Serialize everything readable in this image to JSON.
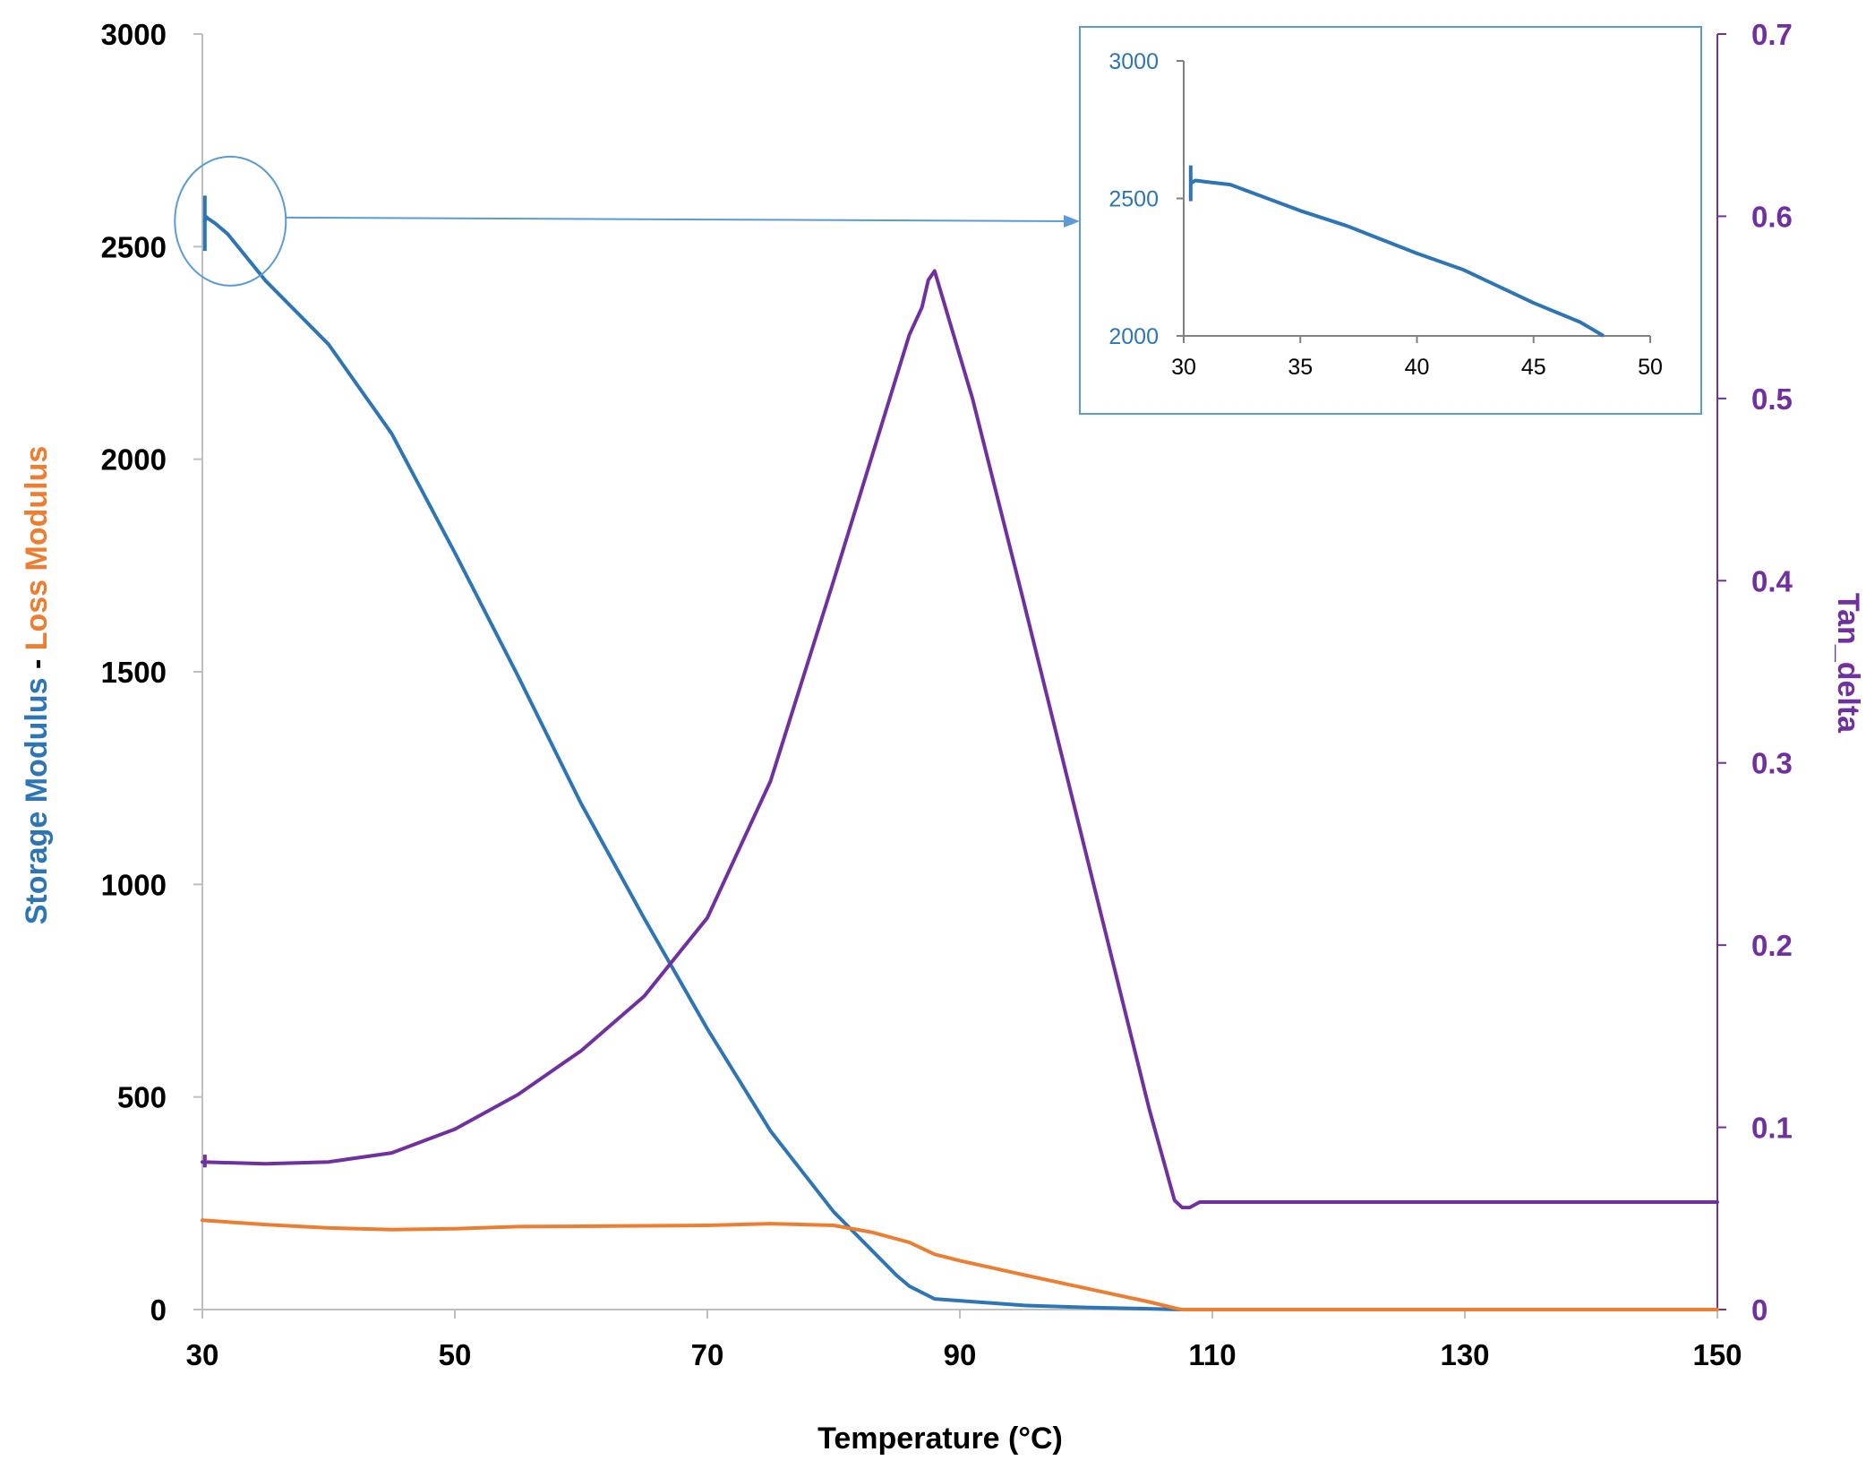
{
  "chart_data": {
    "type": "line",
    "title": "",
    "xlabel": "Temperature (°C)",
    "ylabel_left_parts": [
      {
        "text": "Storage Modulus",
        "color": "#2e75b6"
      },
      {
        "text": " - ",
        "color": "#000000"
      },
      {
        "text": "Loss Modulus",
        "color": "#ed7d31"
      }
    ],
    "ylabel_right": "Tan_delta",
    "xlim": [
      30,
      150
    ],
    "ylim_left": [
      0,
      3000
    ],
    "ylim_right": [
      0,
      0.7
    ],
    "x_ticks": [
      "30",
      "50",
      "70",
      "90",
      "110",
      "130",
      "150"
    ],
    "y_left_ticks": [
      "0",
      "500",
      "1000",
      "1500",
      "2000",
      "2500",
      "3000"
    ],
    "y_right_ticks": [
      "0",
      "0.1",
      "0.2",
      "0.3",
      "0.4",
      "0.5",
      "0.6",
      "0.7"
    ],
    "grid": false,
    "legend": "none",
    "colors": {
      "storage": "#2e75b6",
      "loss": "#ed7d31",
      "tan": "#7030a0",
      "axis": "#bfbfbf",
      "inset_border": "#5b9bd5"
    },
    "series": [
      {
        "key": "storage",
        "axis": "left",
        "color": "#2e75b6",
        "x": [
          30.2,
          30.3,
          30.5,
          31,
          32,
          35,
          40,
          45,
          50,
          55,
          60,
          65,
          70,
          75,
          80,
          85,
          86,
          88,
          95,
          100,
          105,
          107.5
        ],
        "y": [
          2560,
          2570,
          2565,
          2555,
          2530,
          2420,
          2270,
          2060,
          1780,
          1490,
          1190,
          920,
          660,
          420,
          230,
          80,
          55,
          25,
          10,
          5,
          2,
          0
        ]
      },
      {
        "key": "loss",
        "axis": "left",
        "color": "#ed7d31",
        "x": [
          30,
          35,
          40,
          45,
          50,
          55,
          60,
          65,
          70,
          75,
          80,
          83,
          86,
          88,
          90,
          95,
          100,
          105,
          107.5,
          110,
          120,
          130,
          150
        ],
        "y": [
          210,
          200,
          192,
          188,
          190,
          195,
          196,
          197,
          198,
          202,
          198,
          182,
          158,
          130,
          115,
          82,
          50,
          18,
          0,
          0,
          0,
          0,
          0
        ]
      },
      {
        "key": "tan_delta",
        "axis": "right",
        "color": "#7030a0",
        "x": [
          30,
          35,
          40,
          45,
          50,
          55,
          60,
          65,
          70,
          75,
          80,
          84,
          86,
          87,
          87.5,
          88,
          91,
          95,
          100,
          105,
          107,
          107.6,
          108.2,
          109,
          110,
          130,
          150
        ],
        "y": [
          0.081,
          0.08,
          0.081,
          0.086,
          0.099,
          0.118,
          0.142,
          0.172,
          0.215,
          0.29,
          0.4,
          0.49,
          0.535,
          0.55,
          0.565,
          0.57,
          0.5,
          0.39,
          0.25,
          0.11,
          0.06,
          0.056,
          0.056,
          0.059,
          0.059,
          0.059,
          0.059
        ]
      }
    ],
    "inset": {
      "xlim": [
        30,
        50
      ],
      "ylim": [
        2000,
        3000
      ],
      "x_ticks": [
        "30",
        "35",
        "40",
        "45",
        "50"
      ],
      "y_ticks": [
        "2000",
        "2500",
        "3000"
      ],
      "series": {
        "color": "#2e75b6",
        "x": [
          30.3,
          30.5,
          31,
          32,
          35,
          37,
          40,
          42,
          45,
          47,
          48
        ],
        "y": [
          2555,
          2565,
          2560,
          2550,
          2455,
          2400,
          2300,
          2240,
          2120,
          2050,
          2000
        ]
      },
      "spike": {
        "x": 30.3,
        "y_low": 2490,
        "y_high": 2620
      }
    },
    "annotation": {
      "type": "zoom-callout",
      "circle_center": {
        "x": 30.8,
        "y": 2560
      },
      "arrow_to": "inset"
    }
  }
}
